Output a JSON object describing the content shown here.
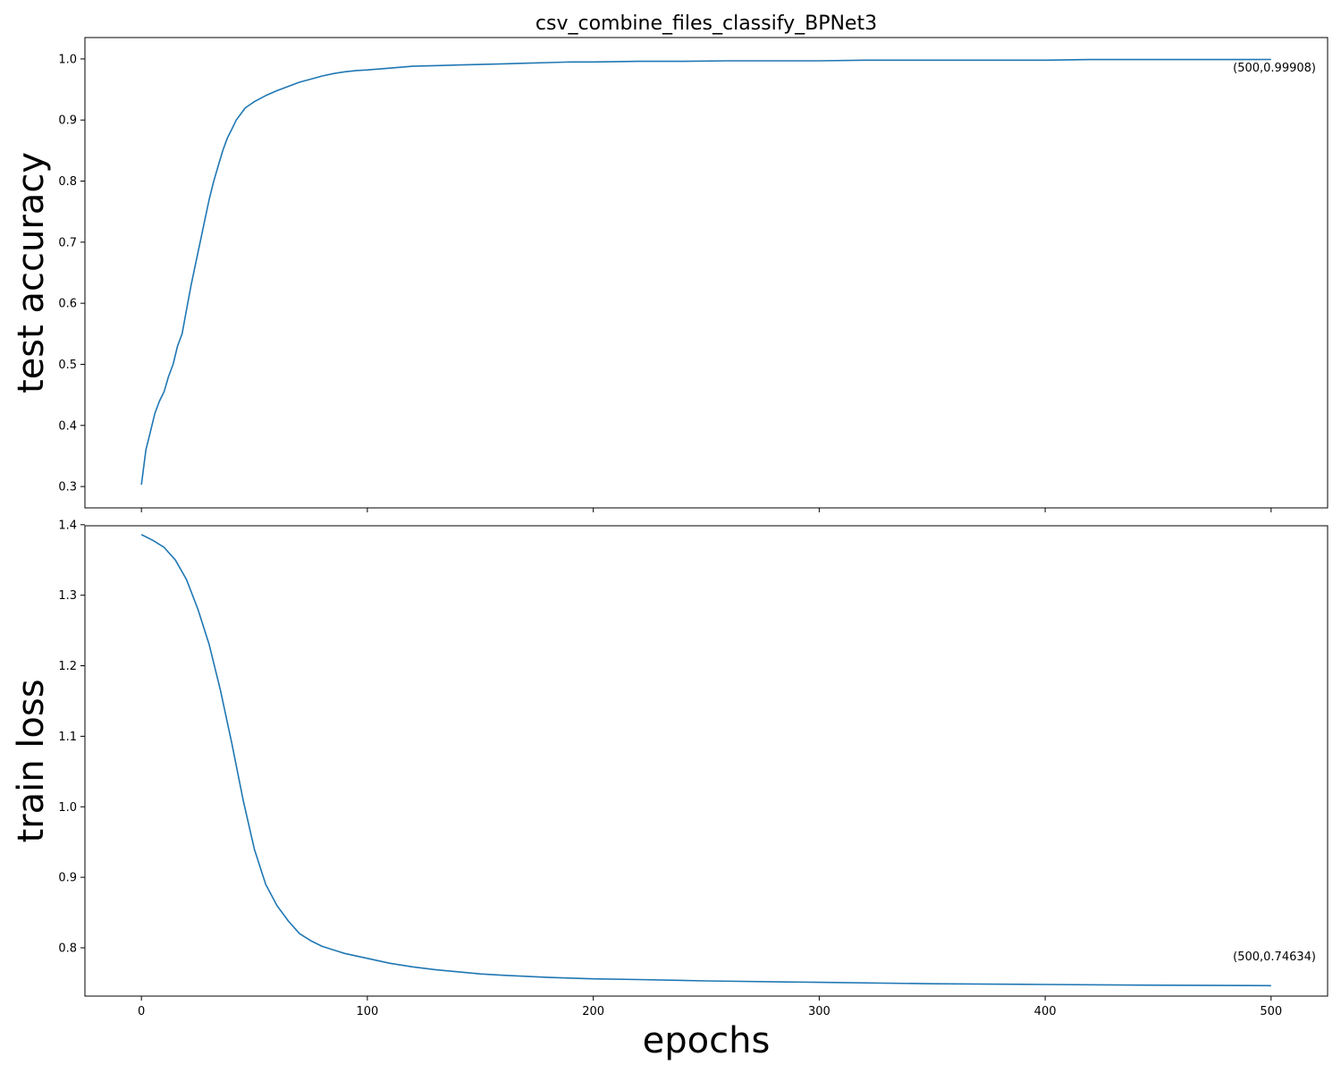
{
  "figure_title": "csv_combine_files_classify_BPNet3",
  "xlabel": "epochs",
  "colors": {
    "series": "#1f77b4",
    "axes": "#000000",
    "background": "#ffffff"
  },
  "chart_data": [
    {
      "type": "line",
      "title": "csv_combine_files_classify_BPNet3",
      "ylabel": "test accuracy",
      "xlabel": "",
      "xlim": [
        -25,
        525
      ],
      "ylim": [
        0.265,
        1.035
      ],
      "xticks": [
        0,
        100,
        200,
        300,
        400,
        500
      ],
      "xtick_labels": [],
      "yticks": [
        0.3,
        0.4,
        0.5,
        0.6,
        0.7,
        0.8,
        0.9,
        1.0
      ],
      "ytick_labels": [
        "0.3",
        "0.4",
        "0.5",
        "0.6",
        "0.7",
        "0.8",
        "0.9",
        "1.0"
      ],
      "grid": false,
      "annotation": "(500,0.99908)",
      "series": [
        {
          "x": [
            0,
            2,
            4,
            6,
            8,
            10,
            12,
            14,
            16,
            18,
            20,
            22,
            24,
            26,
            28,
            30,
            32,
            34,
            36,
            38,
            40,
            42,
            44,
            46,
            48,
            50,
            55,
            60,
            65,
            70,
            75,
            80,
            85,
            90,
            95,
            100,
            110,
            120,
            130,
            140,
            150,
            160,
            170,
            180,
            190,
            200,
            220,
            240,
            260,
            280,
            300,
            320,
            340,
            360,
            380,
            400,
            420,
            440,
            460,
            480,
            500
          ],
          "values": [
            0.303,
            0.36,
            0.39,
            0.42,
            0.44,
            0.455,
            0.48,
            0.5,
            0.53,
            0.55,
            0.59,
            0.63,
            0.665,
            0.7,
            0.735,
            0.77,
            0.8,
            0.825,
            0.85,
            0.87,
            0.885,
            0.9,
            0.91,
            0.92,
            0.925,
            0.93,
            0.94,
            0.948,
            0.955,
            0.962,
            0.967,
            0.972,
            0.976,
            0.979,
            0.981,
            0.982,
            0.985,
            0.988,
            0.989,
            0.99,
            0.991,
            0.992,
            0.993,
            0.994,
            0.995,
            0.995,
            0.996,
            0.996,
            0.997,
            0.997,
            0.997,
            0.998,
            0.998,
            0.998,
            0.998,
            0.998,
            0.999,
            0.999,
            0.999,
            0.999,
            0.99908
          ]
        }
      ]
    },
    {
      "type": "line",
      "title": "",
      "ylabel": "train loss",
      "xlabel": "epochs",
      "xlim": [
        -25,
        525
      ],
      "ylim": [
        0.7315,
        1.3985
      ],
      "xticks": [
        0,
        100,
        200,
        300,
        400,
        500
      ],
      "xtick_labels": [
        "0",
        "100",
        "200",
        "300",
        "400",
        "500"
      ],
      "yticks": [
        0.8,
        0.9,
        1.0,
        1.1,
        1.2,
        1.3,
        1.4
      ],
      "ytick_labels": [
        "0.8",
        "0.9",
        "1.0",
        "1.1",
        "1.2",
        "1.3",
        "1.4"
      ],
      "grid": false,
      "annotation": "(500,0.74634)",
      "series": [
        {
          "x": [
            0,
            5,
            10,
            15,
            20,
            25,
            30,
            35,
            40,
            45,
            50,
            55,
            60,
            65,
            70,
            75,
            80,
            90,
            100,
            110,
            120,
            130,
            140,
            150,
            160,
            180,
            200,
            220,
            250,
            300,
            350,
            400,
            450,
            500
          ],
          "values": [
            1.386,
            1.378,
            1.368,
            1.35,
            1.322,
            1.28,
            1.23,
            1.165,
            1.09,
            1.01,
            0.94,
            0.89,
            0.86,
            0.838,
            0.82,
            0.81,
            0.802,
            0.792,
            0.785,
            0.778,
            0.773,
            0.769,
            0.766,
            0.763,
            0.761,
            0.758,
            0.756,
            0.755,
            0.753,
            0.751,
            0.749,
            0.748,
            0.747,
            0.74634
          ]
        }
      ]
    }
  ]
}
